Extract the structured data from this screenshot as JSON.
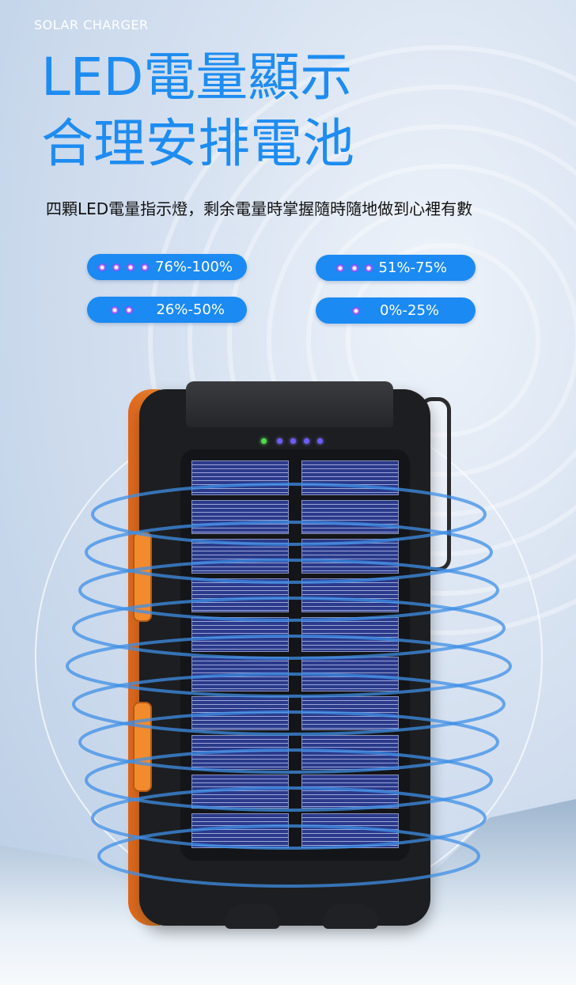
{
  "header": {
    "brand": "SOLAR CHARGER",
    "title_line1": "LED電量顯示",
    "title_line2": "合理安排電池",
    "subtitle": "四顆LED電量指示燈，剩余電量時掌握隨時隨地做到心裡有數"
  },
  "levels": [
    {
      "dots": 4,
      "label": "76%-100%"
    },
    {
      "dots": 3,
      "label": "51%-75%"
    },
    {
      "dots": 2,
      "label": "26%-50%"
    },
    {
      "dots": 1,
      "label": "0%-25%"
    }
  ],
  "colors": {
    "accent": "#1e8cf0",
    "pill": "#1b8af2",
    "led": "#7a3cf0",
    "case_orange": "#f08a33"
  },
  "product": {
    "indicator_leds": 5,
    "led_colors": [
      "green",
      "blue",
      "blue",
      "blue",
      "blue"
    ]
  }
}
